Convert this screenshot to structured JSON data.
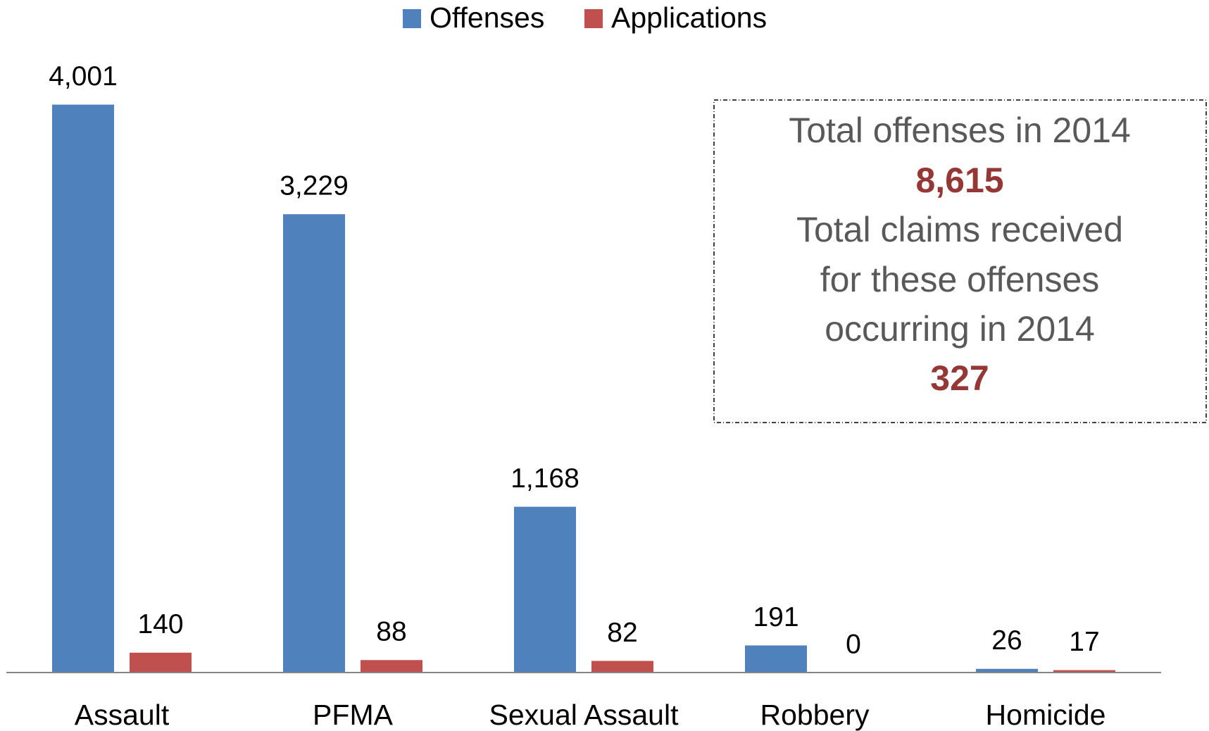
{
  "chart_data": {
    "type": "bar",
    "categories": [
      "Assault",
      "PFMA",
      "Sexual Assault",
      "Robbery",
      "Homicide"
    ],
    "series": [
      {
        "name": "Offenses",
        "color": "#4f81bd",
        "values": [
          4001,
          3229,
          1168,
          191,
          26
        ],
        "value_labels": [
          "4,001",
          "3,229",
          "1,168",
          "191",
          "26"
        ]
      },
      {
        "name": "Applications",
        "color": "#c0504d",
        "values": [
          140,
          88,
          82,
          0,
          17
        ],
        "value_labels": [
          "140",
          "88",
          "82",
          "0",
          "17"
        ]
      }
    ],
    "ylim": [
      0,
      4500
    ],
    "annotation": {
      "lines": [
        "Total offenses in 2014",
        "8,615",
        "Total claims received",
        "for these offenses",
        "occurring in 2014",
        "327"
      ]
    }
  }
}
